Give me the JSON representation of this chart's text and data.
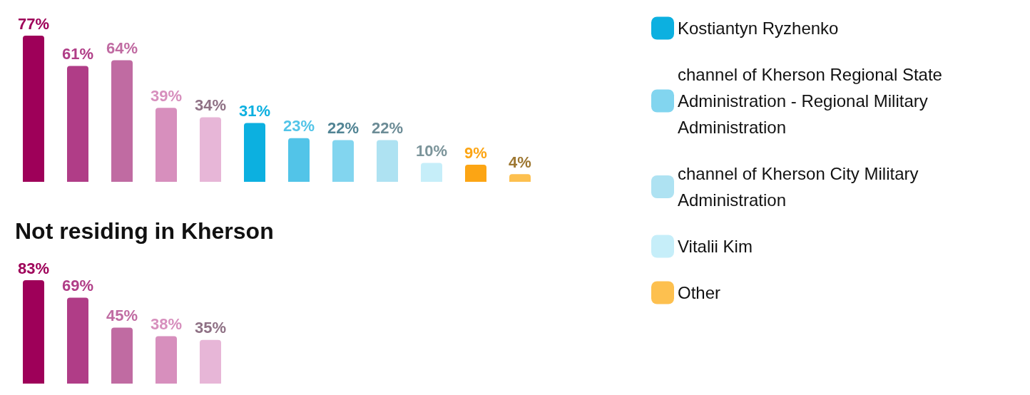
{
  "chart_data": [
    {
      "type": "bar",
      "categories": [
        null,
        null,
        null,
        null,
        null,
        null,
        null,
        null,
        null,
        null,
        null,
        null
      ],
      "stacked": true,
      "series": [
        {
          "color": "#9e0059",
          "values": [
            77,
            null,
            null,
            null,
            null,
            null,
            null,
            null,
            null,
            null,
            null,
            null
          ],
          "value_labels": [
            "77%",
            null,
            null,
            null,
            null,
            null,
            null,
            null,
            null,
            null,
            null,
            null
          ]
        },
        {
          "color": "#b03d87",
          "values": [
            null,
            61,
            null,
            null,
            null,
            null,
            null,
            null,
            null,
            null,
            null,
            null
          ],
          "value_labels": [
            null,
            "61%",
            null,
            null,
            null,
            null,
            null,
            null,
            null,
            null,
            null,
            null
          ]
        },
        {
          "color": "#c06ba2",
          "values": [
            null,
            null,
            64,
            null,
            null,
            null,
            null,
            null,
            null,
            null,
            null,
            null
          ],
          "value_labels": [
            null,
            null,
            "64%",
            null,
            null,
            null,
            null,
            null,
            null,
            null,
            null,
            null
          ]
        },
        {
          "color": "#d78fbd",
          "values": [
            null,
            null,
            null,
            39,
            null,
            null,
            null,
            null,
            null,
            null,
            null,
            null
          ],
          "value_labels": [
            null,
            null,
            null,
            "39%",
            null,
            null,
            null,
            null,
            null,
            null,
            null,
            null
          ]
        },
        {
          "color": "#e7b6d7",
          "values": [
            null,
            null,
            null,
            null,
            34,
            null,
            null,
            null,
            null,
            null,
            null,
            null
          ],
          "value_labels": [
            null,
            null,
            null,
            null,
            "34%",
            null,
            null,
            null,
            null,
            null,
            null,
            null
          ]
        },
        {
          "name": "Kostiantyn Ryzhenko",
          "color": "#0cb0e0",
          "values": [
            null,
            null,
            null,
            null,
            null,
            31,
            null,
            null,
            null,
            null,
            null,
            null
          ],
          "value_labels": [
            null,
            null,
            null,
            null,
            null,
            "31%",
            null,
            null,
            null,
            null,
            null,
            null
          ]
        },
        {
          "color": "#52c4e8",
          "values": [
            null,
            null,
            null,
            null,
            null,
            null,
            23,
            null,
            null,
            null,
            null,
            null
          ],
          "value_labels": [
            null,
            null,
            null,
            null,
            null,
            null,
            "23%",
            null,
            null,
            null,
            null,
            null
          ]
        },
        {
          "name": "channel of Kherson Regional State Administration - Regional Military Administration",
          "color": "#82d5ef",
          "values": [
            null,
            null,
            null,
            null,
            null,
            null,
            null,
            22,
            null,
            null,
            null,
            null
          ],
          "value_labels": [
            null,
            null,
            null,
            null,
            null,
            null,
            null,
            "22%",
            null,
            null,
            null,
            null
          ]
        },
        {
          "name": "channel of Kherson City Military Administration",
          "color": "#aee2f2",
          "values": [
            null,
            null,
            null,
            null,
            null,
            null,
            null,
            null,
            22,
            null,
            null,
            null
          ],
          "value_labels": [
            null,
            null,
            null,
            null,
            null,
            null,
            null,
            null,
            "22%",
            null,
            null,
            null
          ]
        },
        {
          "name": "Vitalii Kim",
          "color": "#c6eef9",
          "values": [
            null,
            null,
            null,
            null,
            null,
            null,
            null,
            null,
            null,
            10,
            null,
            null
          ],
          "value_labels": [
            null,
            null,
            null,
            null,
            null,
            null,
            null,
            null,
            null,
            "10%",
            null,
            null
          ]
        },
        {
          "color": "#fca514",
          "values": [
            null,
            null,
            null,
            null,
            null,
            null,
            null,
            null,
            null,
            null,
            9,
            null
          ],
          "value_labels": [
            null,
            null,
            null,
            null,
            null,
            null,
            null,
            null,
            null,
            null,
            "9%",
            null
          ]
        },
        {
          "name": "Other",
          "color": "#fdc04f",
          "values": [
            null,
            null,
            null,
            null,
            null,
            null,
            null,
            null,
            null,
            null,
            null,
            4
          ],
          "value_labels": [
            null,
            null,
            null,
            null,
            null,
            null,
            null,
            null,
            null,
            null,
            null,
            "4%"
          ]
        }
      ],
      "legend": "right",
      "tick_labels": false
    },
    {
      "type": "bar",
      "title": "Not residing in Kherson",
      "categories": [
        null,
        null,
        null,
        null,
        null
      ],
      "values": [
        83,
        69,
        45,
        38,
        35
      ],
      "value_labels": [
        "83%",
        "69%",
        "45%",
        "38%",
        "35%"
      ],
      "colors": [
        "#9e0059",
        "#b03d87",
        "#c06ba2",
        "#d78fbd",
        "#e7b6d7"
      ],
      "tick_labels": false
    }
  ]
}
